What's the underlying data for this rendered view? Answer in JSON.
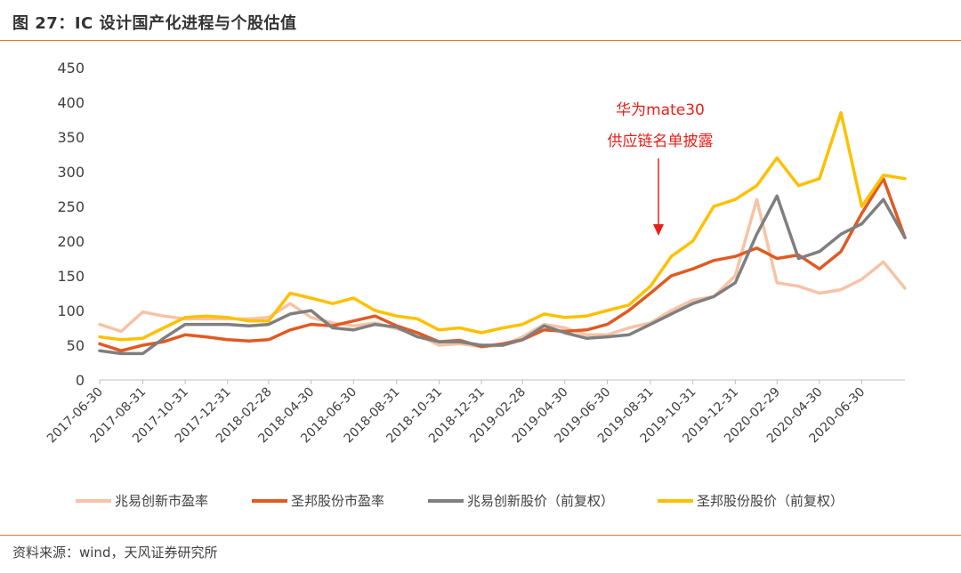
{
  "figure": {
    "title": "图 27：IC 设计国产化进程与个股估值",
    "source": "资料来源：wind，天风证券研究所"
  },
  "chart_data": {
    "type": "line",
    "ylim": [
      0,
      450
    ],
    "yticks": [
      0,
      50,
      100,
      150,
      200,
      250,
      300,
      350,
      400,
      450
    ],
    "x_tick_labels": [
      "2017-06-30",
      "2017-08-31",
      "2017-10-31",
      "2017-12-31",
      "2018-02-28",
      "2018-04-30",
      "2018-06-30",
      "2018-08-31",
      "2018-10-31",
      "2018-12-31",
      "2019-02-28",
      "2019-04-30",
      "2019-06-30",
      "2019-08-31",
      "2019-10-31",
      "2019-12-31",
      "2020-02-29",
      "2020-04-30",
      "2020-06-30"
    ],
    "x": [
      "2017-06-30",
      "2017-07-31",
      "2017-08-31",
      "2017-09-30",
      "2017-10-31",
      "2017-11-30",
      "2017-12-31",
      "2018-01-31",
      "2018-02-28",
      "2018-03-31",
      "2018-04-30",
      "2018-05-31",
      "2018-06-30",
      "2018-07-31",
      "2018-08-31",
      "2018-09-30",
      "2018-10-31",
      "2018-11-30",
      "2018-12-31",
      "2019-01-31",
      "2019-02-28",
      "2019-03-31",
      "2019-04-30",
      "2019-05-31",
      "2019-06-30",
      "2019-07-31",
      "2019-08-31",
      "2019-09-30",
      "2019-10-31",
      "2019-11-30",
      "2019-12-31",
      "2020-01-31",
      "2020-02-29",
      "2020-03-31",
      "2020-04-30",
      "2020-05-31",
      "2020-06-30",
      "2020-07-31",
      "2020-08-31"
    ],
    "series": [
      {
        "name": "兆易创新市盈率",
        "color": "#F6C3A6",
        "values": [
          80,
          70,
          98,
          92,
          88,
          88,
          88,
          88,
          90,
          110,
          90,
          82,
          78,
          82,
          74,
          65,
          50,
          52,
          48,
          50,
          62,
          80,
          75,
          65,
          65,
          75,
          82,
          100,
          115,
          120,
          150,
          260,
          140,
          135,
          125,
          130,
          145,
          170,
          132
        ]
      },
      {
        "name": "圣邦股份市盈率",
        "color": "#E05A22",
        "values": [
          52,
          42,
          50,
          55,
          65,
          62,
          58,
          56,
          58,
          72,
          80,
          78,
          85,
          92,
          78,
          68,
          55,
          57,
          48,
          52,
          58,
          72,
          70,
          72,
          80,
          100,
          125,
          150,
          160,
          172,
          178,
          190,
          175,
          180,
          160,
          185,
          240,
          290,
          205
        ]
      },
      {
        "name": "兆易创新股价（前复权）",
        "color": "#7F7F7F",
        "values": [
          42,
          38,
          38,
          60,
          80,
          80,
          80,
          78,
          80,
          95,
          100,
          75,
          72,
          80,
          76,
          62,
          55,
          55,
          50,
          50,
          58,
          78,
          68,
          60,
          62,
          65,
          80,
          95,
          110,
          120,
          140,
          210,
          265,
          175,
          185,
          210,
          225,
          260,
          205
        ]
      },
      {
        "name": "圣邦股份股价（前复权）",
        "color": "#FFC000",
        "values": [
          62,
          58,
          60,
          75,
          90,
          92,
          90,
          85,
          85,
          125,
          118,
          110,
          118,
          100,
          92,
          88,
          72,
          75,
          68,
          75,
          80,
          95,
          90,
          92,
          100,
          108,
          135,
          178,
          200,
          250,
          260,
          280,
          320,
          280,
          290,
          385,
          250,
          295,
          290
        ]
      }
    ],
    "annotations": [
      {
        "text": "华为mate30",
        "x": "2019-08-31"
      },
      {
        "text": "供应链名单披露",
        "x": "2019-08-31"
      }
    ],
    "legend": "bottom",
    "grid": false
  }
}
